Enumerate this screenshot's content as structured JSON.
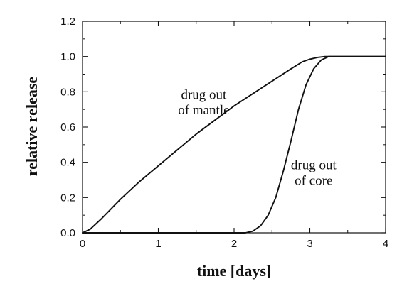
{
  "chart_data": {
    "type": "line",
    "title": "",
    "xlabel": "time [days]",
    "ylabel": "relative release",
    "xlim": [
      0,
      4
    ],
    "ylim": [
      0,
      1.2
    ],
    "x_ticks": [
      "0",
      "1",
      "2",
      "3",
      "4"
    ],
    "y_ticks": [
      "0.0",
      "0.2",
      "0.4",
      "0.6",
      "0.8",
      "1.0",
      "1.2"
    ],
    "grid": false,
    "legend": "none",
    "line_color": "#111111",
    "series": [
      {
        "x": [
          0,
          0.1,
          0.25,
          0.5,
          0.75,
          1.0,
          1.25,
          1.5,
          1.75,
          2.0,
          2.25,
          2.5,
          2.75,
          2.9,
          3.0,
          3.1,
          3.2,
          3.3,
          3.5,
          3.75,
          4.0
        ],
        "y": [
          0,
          0.02,
          0.08,
          0.19,
          0.29,
          0.38,
          0.47,
          0.56,
          0.64,
          0.72,
          0.79,
          0.86,
          0.93,
          0.97,
          0.985,
          0.995,
          1.0,
          1.0,
          1.0,
          1.0,
          1.0
        ]
      },
      {
        "x": [
          0,
          2.0,
          2.15,
          2.25,
          2.35,
          2.45,
          2.55,
          2.65,
          2.75,
          2.85,
          2.95,
          3.05,
          3.15,
          3.25,
          3.35,
          3.5,
          4.0
        ],
        "y": [
          0,
          0,
          0,
          0.01,
          0.04,
          0.1,
          0.2,
          0.35,
          0.52,
          0.7,
          0.84,
          0.93,
          0.98,
          1.0,
          1.0,
          1.0,
          1.0
        ]
      }
    ],
    "annotations": [
      {
        "lines": [
          "drug out",
          "of mantle"
        ],
        "x": 1.6,
        "y": 0.76
      },
      {
        "lines": [
          "drug out",
          "of core"
        ],
        "x": 3.05,
        "y": 0.36
      }
    ]
  }
}
